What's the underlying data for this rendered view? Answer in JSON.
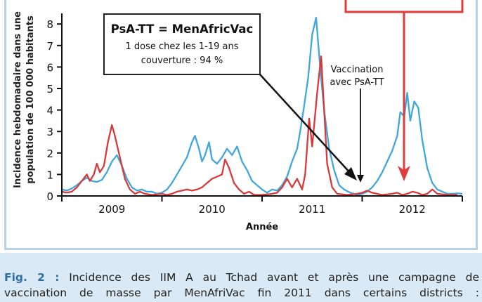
{
  "chart_data": {
    "type": "line",
    "ylabel_lines": [
      "Incidence hebdomadaire dans une",
      "population de 100 000 habitants"
    ],
    "xlabel": "Année",
    "ylim": [
      0,
      8.3
    ],
    "yticks": [
      0,
      1,
      2,
      3,
      4,
      5,
      6,
      7,
      8
    ],
    "xlim": [
      2008.5,
      2012.5
    ],
    "year_labels": [
      "2009",
      "2010",
      "2011",
      "2012"
    ],
    "series": [
      {
        "color": "#3fa7dc",
        "points": [
          [
            2008.5,
            0.3
          ],
          [
            2008.55,
            0.25
          ],
          [
            2008.6,
            0.35
          ],
          [
            2008.65,
            0.5
          ],
          [
            2008.7,
            0.7
          ],
          [
            2008.75,
            0.85
          ],
          [
            2008.8,
            0.7
          ],
          [
            2008.85,
            0.65
          ],
          [
            2008.9,
            0.75
          ],
          [
            2008.95,
            1.1
          ],
          [
            2009.0,
            1.6
          ],
          [
            2009.05,
            1.9
          ],
          [
            2009.1,
            1.4
          ],
          [
            2009.15,
            0.8
          ],
          [
            2009.2,
            0.4
          ],
          [
            2009.25,
            0.25
          ],
          [
            2009.3,
            0.3
          ],
          [
            2009.35,
            0.2
          ],
          [
            2009.4,
            0.2
          ],
          [
            2009.45,
            0.1
          ],
          [
            2009.5,
            0.15
          ],
          [
            2009.55,
            0.3
          ],
          [
            2009.6,
            0.6
          ],
          [
            2009.65,
            1.0
          ],
          [
            2009.7,
            1.4
          ],
          [
            2009.75,
            1.8
          ],
          [
            2009.8,
            2.5
          ],
          [
            2009.83,
            2.8
          ],
          [
            2009.87,
            2.2
          ],
          [
            2009.9,
            1.6
          ],
          [
            2009.93,
            1.9
          ],
          [
            2009.97,
            2.5
          ],
          [
            2010.0,
            1.7
          ],
          [
            2010.05,
            1.5
          ],
          [
            2010.1,
            1.8
          ],
          [
            2010.15,
            2.2
          ],
          [
            2010.2,
            1.9
          ],
          [
            2010.25,
            2.3
          ],
          [
            2010.3,
            1.6
          ],
          [
            2010.35,
            1.2
          ],
          [
            2010.4,
            0.7
          ],
          [
            2010.45,
            0.5
          ],
          [
            2010.5,
            0.3
          ],
          [
            2010.55,
            0.15
          ],
          [
            2010.6,
            0.3
          ],
          [
            2010.65,
            0.25
          ],
          [
            2010.7,
            0.5
          ],
          [
            2010.75,
            0.9
          ],
          [
            2010.8,
            1.6
          ],
          [
            2010.85,
            2.2
          ],
          [
            2010.88,
            3.0
          ],
          [
            2010.92,
            4.2
          ],
          [
            2010.96,
            5.5
          ],
          [
            2011.0,
            7.5
          ],
          [
            2011.04,
            8.3
          ],
          [
            2011.08,
            6.0
          ],
          [
            2011.12,
            4.0
          ],
          [
            2011.17,
            2.2
          ],
          [
            2011.22,
            1.2
          ],
          [
            2011.27,
            0.5
          ],
          [
            2011.32,
            0.3
          ],
          [
            2011.38,
            0.15
          ],
          [
            2011.45,
            0.05
          ],
          [
            2011.5,
            0.1
          ],
          [
            2011.55,
            0.2
          ],
          [
            2011.6,
            0.4
          ],
          [
            2011.65,
            0.7
          ],
          [
            2011.7,
            1.1
          ],
          [
            2011.75,
            1.6
          ],
          [
            2011.8,
            2.1
          ],
          [
            2011.85,
            2.8
          ],
          [
            2011.88,
            3.9
          ],
          [
            2011.92,
            3.7
          ],
          [
            2011.95,
            4.8
          ],
          [
            2011.98,
            3.5
          ],
          [
            2012.02,
            4.4
          ],
          [
            2012.06,
            4.1
          ],
          [
            2012.1,
            2.6
          ],
          [
            2012.15,
            1.3
          ],
          [
            2012.2,
            0.6
          ],
          [
            2012.25,
            0.3
          ],
          [
            2012.3,
            0.2
          ],
          [
            2012.35,
            0.1
          ],
          [
            2012.4,
            0.1
          ],
          [
            2012.45,
            0.12
          ],
          [
            2012.5,
            0.1
          ]
        ]
      },
      {
        "color": "#d63a3a",
        "points": [
          [
            2008.5,
            0.2
          ],
          [
            2008.55,
            0.15
          ],
          [
            2008.6,
            0.2
          ],
          [
            2008.65,
            0.4
          ],
          [
            2008.7,
            0.7
          ],
          [
            2008.75,
            1.0
          ],
          [
            2008.78,
            0.7
          ],
          [
            2008.82,
            1.0
          ],
          [
            2008.85,
            1.5
          ],
          [
            2008.88,
            1.1
          ],
          [
            2008.92,
            1.4
          ],
          [
            2008.96,
            2.5
          ],
          [
            2009.0,
            3.3
          ],
          [
            2009.03,
            2.8
          ],
          [
            2009.08,
            1.8
          ],
          [
            2009.13,
            0.8
          ],
          [
            2009.18,
            0.3
          ],
          [
            2009.23,
            0.1
          ],
          [
            2009.28,
            0.2
          ],
          [
            2009.33,
            0.1
          ],
          [
            2009.4,
            0.05
          ],
          [
            2009.5,
            0.1
          ],
          [
            2009.55,
            0.05
          ],
          [
            2009.6,
            0.1
          ],
          [
            2009.65,
            0.2
          ],
          [
            2009.7,
            0.25
          ],
          [
            2009.75,
            0.3
          ],
          [
            2009.8,
            0.25
          ],
          [
            2009.85,
            0.3
          ],
          [
            2009.9,
            0.4
          ],
          [
            2009.95,
            0.6
          ],
          [
            2010.0,
            0.8
          ],
          [
            2010.05,
            0.9
          ],
          [
            2010.1,
            1.0
          ],
          [
            2010.13,
            1.7
          ],
          [
            2010.17,
            1.3
          ],
          [
            2010.22,
            0.6
          ],
          [
            2010.27,
            0.3
          ],
          [
            2010.32,
            0.1
          ],
          [
            2010.37,
            0.2
          ],
          [
            2010.42,
            0.05
          ],
          [
            2010.5,
            0.05
          ],
          [
            2010.6,
            0.1
          ],
          [
            2010.65,
            0.15
          ],
          [
            2010.7,
            0.4
          ],
          [
            2010.75,
            0.8
          ],
          [
            2010.8,
            0.4
          ],
          [
            2010.85,
            0.8
          ],
          [
            2010.9,
            0.3
          ],
          [
            2010.93,
            1.0
          ],
          [
            2010.97,
            3.6
          ],
          [
            2011.0,
            2.3
          ],
          [
            2011.05,
            4.8
          ],
          [
            2011.09,
            6.5
          ],
          [
            2011.12,
            4.0
          ],
          [
            2011.15,
            1.5
          ],
          [
            2011.2,
            0.4
          ],
          [
            2011.25,
            0.1
          ],
          [
            2011.35,
            0.05
          ],
          [
            2011.45,
            0.1
          ],
          [
            2011.5,
            0.15
          ],
          [
            2011.55,
            0.25
          ],
          [
            2011.6,
            0.15
          ],
          [
            2011.7,
            0.05
          ],
          [
            2011.8,
            0.1
          ],
          [
            2011.85,
            0.15
          ],
          [
            2011.9,
            0.05
          ],
          [
            2011.95,
            0.1
          ],
          [
            2012.0,
            0.2
          ],
          [
            2012.05,
            0.15
          ],
          [
            2012.1,
            0.05
          ],
          [
            2012.15,
            0.1
          ],
          [
            2012.2,
            0.3
          ],
          [
            2012.25,
            0.1
          ],
          [
            2012.35,
            0.05
          ],
          [
            2012.45,
            0.05
          ]
        ]
      }
    ],
    "annotation_box": {
      "title": "PsA-TT = MenAfricVac",
      "line1": "1 dose chez les 1-19 ans",
      "line2": "couverture : 94 %"
    },
    "vaccination_label": [
      "Vaccination",
      "avec PsA-TT"
    ],
    "colors": {
      "blue": "#3fa7dc",
      "red": "#d63a3a",
      "annotation_red": "#e23b3b"
    }
  },
  "caption": {
    "line1_bold": "Fig. 2 :",
    "line1_rest": "Incidence des IIM A au Tchad avant et après une campagne de",
    "line2": "vaccination de masse par MenAfriVac fin 2011 dans certains districts :"
  }
}
